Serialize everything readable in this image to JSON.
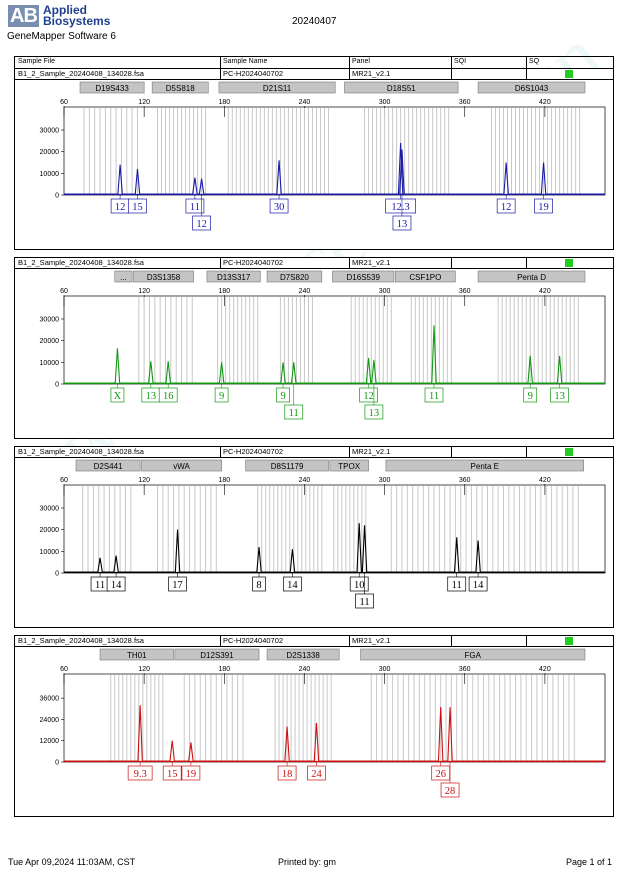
{
  "header": {
    "logo_mark": "AB",
    "logo_line1": "Applied",
    "logo_line2": "Biosystems",
    "software": "GeneMapper Software 6",
    "date": "20240407"
  },
  "columns": {
    "sample_file": "Sample File",
    "sample_name": "Sample Name",
    "panel": "Panel",
    "sqi": "SQI",
    "sq": "SQ"
  },
  "x_ticks": [
    "60",
    "120",
    "180",
    "240",
    "300",
    "360",
    "420"
  ],
  "panels": [
    {
      "sample_file": "B1_2_Sample_20240408_134028.fsa",
      "sample_name": "PC-H2024040702",
      "panel": "MR21_v2.1",
      "color": "#1a1aa6",
      "y_ticks": [
        "30000",
        "20000",
        "10000",
        "0"
      ],
      "y_max": 36000,
      "markers": [
        {
          "name": "D19S433",
          "from": 72,
          "to": 120
        },
        {
          "name": "D5S818",
          "from": 126,
          "to": 168
        },
        {
          "name": "D21S11",
          "from": 176,
          "to": 263
        },
        {
          "name": "D18S51",
          "from": 270,
          "to": 355
        },
        {
          "name": "D6S1043",
          "from": 370,
          "to": 450
        }
      ],
      "bins": [
        [
          75,
          117,
          4
        ],
        [
          130,
          166,
          3
        ],
        [
          183,
          260,
          3
        ],
        [
          285,
          350,
          3
        ],
        [
          380,
          447,
          3
        ]
      ],
      "peaks": [
        {
          "x": 102,
          "h": 14000,
          "label": "12",
          "row": 0
        },
        {
          "x": 115,
          "h": 12000,
          "label": "15",
          "row": 0
        },
        {
          "x": 158,
          "h": 8000,
          "label": "11",
          "row": 0
        },
        {
          "x": 163,
          "h": 7500,
          "label": "12",
          "row": 1
        },
        {
          "x": 221,
          "h": 16000,
          "label": "30",
          "row": 0
        },
        {
          "x": 312,
          "h": 24000,
          "label": "12.3",
          "row": 0
        },
        {
          "x": 313,
          "h": 21000,
          "label": "13",
          "row": 1
        },
        {
          "x": 391,
          "h": 15000,
          "label": "12",
          "row": 0
        },
        {
          "x": 419,
          "h": 15000,
          "label": "19",
          "row": 0
        }
      ]
    },
    {
      "sample_file": "B1_2_Sample_20240408_134028.fsa",
      "sample_name": "PC-H2024040702",
      "panel": "MR21_v2.1",
      "color": "#119911",
      "y_ticks": [
        "30000",
        "20000",
        "10000",
        "0"
      ],
      "y_max": 36000,
      "markers": [
        {
          "name": "...",
          "from": 98,
          "to": 111
        },
        {
          "name": "D3S1358",
          "from": 112,
          "to": 157
        },
        {
          "name": "D13S317",
          "from": 167,
          "to": 207
        },
        {
          "name": "D7S820",
          "from": 212,
          "to": 253
        },
        {
          "name": "D16S539",
          "from": 261,
          "to": 307
        },
        {
          "name": "CSF1PO",
          "from": 308,
          "to": 353
        },
        {
          "name": "Penta D",
          "from": 370,
          "to": 450
        }
      ],
      "bins": [
        [
          116,
          158,
          4
        ],
        [
          175,
          205,
          3
        ],
        [
          222,
          248,
          3
        ],
        [
          275,
          305,
          3
        ],
        [
          320,
          352,
          3
        ],
        [
          385,
          445,
          3
        ]
      ],
      "peaks": [
        {
          "x": 100,
          "h": 16500,
          "label": "X",
          "row": 0
        },
        {
          "x": 125,
          "h": 10500,
          "label": "13",
          "row": 0
        },
        {
          "x": 138,
          "h": 10500,
          "label": "16",
          "row": 0
        },
        {
          "x": 178,
          "h": 10000,
          "label": "9",
          "row": 0
        },
        {
          "x": 224,
          "h": 10000,
          "label": "9",
          "row": 0
        },
        {
          "x": 232,
          "h": 10000,
          "label": "11",
          "row": 1
        },
        {
          "x": 288,
          "h": 12000,
          "label": "12",
          "row": 0
        },
        {
          "x": 292,
          "h": 11000,
          "label": "13",
          "row": 1
        },
        {
          "x": 337,
          "h": 27000,
          "label": "11",
          "row": 0
        },
        {
          "x": 409,
          "h": 13000,
          "label": "9",
          "row": 0
        },
        {
          "x": 431,
          "h": 13000,
          "label": "13",
          "row": 0
        }
      ]
    },
    {
      "sample_file": "B1_2_Sample_20240408_134028.fsa",
      "sample_name": "PC-H2024040702",
      "panel": "MR21_v2.1",
      "color": "#000000",
      "y_ticks": [
        "30000",
        "20000",
        "10000",
        "0"
      ],
      "y_max": 36000,
      "markers": [
        {
          "name": "D2S441",
          "from": 69,
          "to": 117
        },
        {
          "name": "vWA",
          "from": 118,
          "to": 178
        },
        {
          "name": "D8S1179",
          "from": 196,
          "to": 258
        },
        {
          "name": "TPOX",
          "from": 259,
          "to": 288
        },
        {
          "name": "Penta E",
          "from": 301,
          "to": 449
        }
      ],
      "bins": [
        [
          74,
          110,
          4
        ],
        [
          130,
          176,
          4
        ],
        [
          205,
          255,
          3
        ],
        [
          262,
          287,
          3
        ],
        [
          305,
          447,
          4
        ]
      ],
      "peaks": [
        {
          "x": 87,
          "h": 7000,
          "label": "11",
          "row": 0
        },
        {
          "x": 99,
          "h": 8000,
          "label": "14",
          "row": 0
        },
        {
          "x": 145,
          "h": 20000,
          "label": "17",
          "row": 0
        },
        {
          "x": 206,
          "h": 12000,
          "label": "8",
          "row": 0
        },
        {
          "x": 231,
          "h": 11000,
          "label": "14",
          "row": 0
        },
        {
          "x": 281,
          "h": 23000,
          "label": "10",
          "row": 0
        },
        {
          "x": 285,
          "h": 22000,
          "label": "11",
          "row": 1
        },
        {
          "x": 354,
          "h": 16500,
          "label": "11",
          "row": 0
        },
        {
          "x": 370,
          "h": 15000,
          "label": "14",
          "row": 0
        }
      ]
    },
    {
      "sample_file": "B1_2_Sample_20240408_134028.fsa",
      "sample_name": "PC-H2024040702",
      "panel": "MR21_v2.1",
      "color": "#cc1111",
      "y_ticks": [
        "36000",
        "24000",
        "12000",
        "0"
      ],
      "y_max": 44000,
      "markers": [
        {
          "name": "TH01",
          "from": 87,
          "to": 142
        },
        {
          "name": "D12S391",
          "from": 143,
          "to": 206
        },
        {
          "name": "D2S1338",
          "from": 212,
          "to": 266
        },
        {
          "name": "FGA",
          "from": 282,
          "to": 450
        }
      ],
      "bins": [
        [
          95,
          135,
          3
        ],
        [
          150,
          195,
          4
        ],
        [
          218,
          262,
          3
        ],
        [
          290,
          445,
          4
        ]
      ],
      "peaks": [
        {
          "x": 117,
          "h": 32000,
          "label": "9.3",
          "row": 0
        },
        {
          "x": 141,
          "h": 12000,
          "label": "15",
          "row": 0
        },
        {
          "x": 155,
          "h": 11000,
          "label": "19",
          "row": 0
        },
        {
          "x": 227,
          "h": 20000,
          "label": "18",
          "row": 0
        },
        {
          "x": 249,
          "h": 22000,
          "label": "24",
          "row": 0
        },
        {
          "x": 342,
          "h": 31000,
          "label": "26",
          "row": 0
        },
        {
          "x": 349,
          "h": 31000,
          "label": "28",
          "row": 1
        }
      ]
    }
  ],
  "footer": {
    "datetime": "Tue Apr 09,2024 11:03AM, CST",
    "printed_by": "Printed by: gm",
    "page": "Page 1 of 1"
  }
}
